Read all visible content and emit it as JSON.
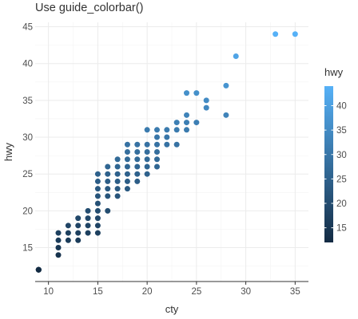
{
  "chart_data": {
    "type": "scatter",
    "title": "Use guide_colorbar()",
    "xlabel": "cty",
    "ylabel": "hwy",
    "xlim": [
      8.65,
      36.35
    ],
    "ylim": [
      10.4,
      45.6
    ],
    "x_ticks": [
      "10",
      "15",
      "20",
      "25",
      "30",
      "35"
    ],
    "y_ticks": [
      "15",
      "20",
      "25",
      "30",
      "35",
      "40",
      "45"
    ],
    "grid": true,
    "legend": {
      "title": "hwy",
      "placement": "right",
      "type": "colorbar",
      "ticks": [
        "15",
        "20",
        "25",
        "30",
        "35",
        "40"
      ],
      "range": [
        12,
        44
      ],
      "low_color": "#132B43",
      "high_color": "#56B1F7"
    },
    "points": [
      [
        9,
        12
      ],
      [
        9,
        12
      ],
      [
        9,
        12
      ],
      [
        9,
        12
      ],
      [
        9,
        12
      ],
      [
        11,
        14
      ],
      [
        11,
        15
      ],
      [
        11,
        16
      ],
      [
        11,
        17
      ],
      [
        12,
        16
      ],
      [
        12,
        17
      ],
      [
        12,
        18
      ],
      [
        13,
        16
      ],
      [
        13,
        17
      ],
      [
        13,
        18
      ],
      [
        13,
        19
      ],
      [
        14,
        17
      ],
      [
        14,
        18
      ],
      [
        14,
        19
      ],
      [
        14,
        20
      ],
      [
        15,
        17
      ],
      [
        15,
        18
      ],
      [
        15,
        19
      ],
      [
        15,
        20
      ],
      [
        15,
        21
      ],
      [
        15,
        22
      ],
      [
        15,
        23
      ],
      [
        15,
        24
      ],
      [
        15,
        25
      ],
      [
        16,
        20
      ],
      [
        16,
        22
      ],
      [
        16,
        23
      ],
      [
        16,
        24
      ],
      [
        16,
        25
      ],
      [
        16,
        26
      ],
      [
        17,
        22
      ],
      [
        17,
        23
      ],
      [
        17,
        24
      ],
      [
        17,
        25
      ],
      [
        17,
        26
      ],
      [
        17,
        27
      ],
      [
        18,
        23
      ],
      [
        18,
        24
      ],
      [
        18,
        25
      ],
      [
        18,
        26
      ],
      [
        18,
        27
      ],
      [
        18,
        28
      ],
      [
        18,
        29
      ],
      [
        19,
        24
      ],
      [
        19,
        25
      ],
      [
        19,
        26
      ],
      [
        19,
        27
      ],
      [
        19,
        28
      ],
      [
        19,
        29
      ],
      [
        20,
        25
      ],
      [
        20,
        26
      ],
      [
        20,
        27
      ],
      [
        20,
        28
      ],
      [
        20,
        29
      ],
      [
        20,
        31
      ],
      [
        21,
        26
      ],
      [
        21,
        27
      ],
      [
        21,
        28
      ],
      [
        21,
        29
      ],
      [
        21,
        30
      ],
      [
        21,
        31
      ],
      [
        22,
        29
      ],
      [
        22,
        30
      ],
      [
        22,
        31
      ],
      [
        23,
        29
      ],
      [
        23,
        31
      ],
      [
        23,
        32
      ],
      [
        24,
        31
      ],
      [
        24,
        32
      ],
      [
        24,
        33
      ],
      [
        24,
        36
      ],
      [
        25,
        32
      ],
      [
        25,
        36
      ],
      [
        26,
        34
      ],
      [
        26,
        35
      ],
      [
        28,
        33
      ],
      [
        28,
        37
      ],
      [
        29,
        41
      ],
      [
        33,
        44
      ],
      [
        35,
        44
      ]
    ]
  }
}
